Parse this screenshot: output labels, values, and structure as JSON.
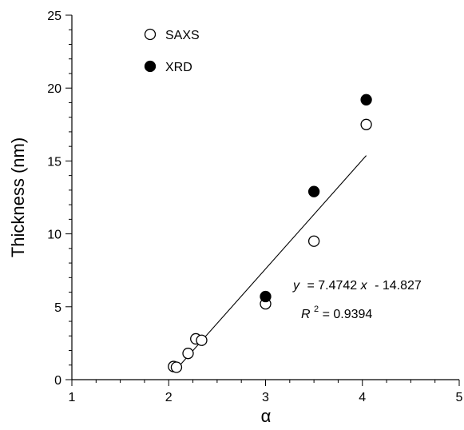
{
  "chart_data": {
    "type": "scatter",
    "xlabel": "α",
    "ylabel": "Thickness (nm)",
    "xlim": [
      1,
      5
    ],
    "ylim": [
      0,
      25
    ],
    "xticks": [
      1,
      2,
      3,
      4,
      5
    ],
    "yticks": [
      0,
      5,
      10,
      15,
      20,
      25
    ],
    "grid": false,
    "legend_position": "top-left",
    "series": [
      {
        "name": "SAXS",
        "marker": "open-circle",
        "color": "#000000",
        "points": [
          {
            "x": 2.05,
            "y": 0.9
          },
          {
            "x": 2.08,
            "y": 0.85
          },
          {
            "x": 2.2,
            "y": 1.8
          },
          {
            "x": 2.28,
            "y": 2.8
          },
          {
            "x": 2.34,
            "y": 2.7
          },
          {
            "x": 3.0,
            "y": 5.2
          },
          {
            "x": 3.5,
            "y": 9.5
          },
          {
            "x": 4.04,
            "y": 17.5
          }
        ]
      },
      {
        "name": "XRD",
        "marker": "filled-circle",
        "color": "#000000",
        "points": [
          {
            "x": 3.0,
            "y": 5.7
          },
          {
            "x": 3.5,
            "y": 12.9
          },
          {
            "x": 4.04,
            "y": 19.2
          }
        ]
      }
    ],
    "fit": {
      "slope": 7.4742,
      "intercept": -14.827,
      "x_range": [
        2.1,
        4.04
      ],
      "equation": {
        "y": "y",
        "equals": "= 7.4742",
        "x": "x",
        "rest": "- 14.827"
      },
      "r2": {
        "r": "R",
        "sup": "2",
        "rest": " = 0.9394"
      }
    }
  }
}
